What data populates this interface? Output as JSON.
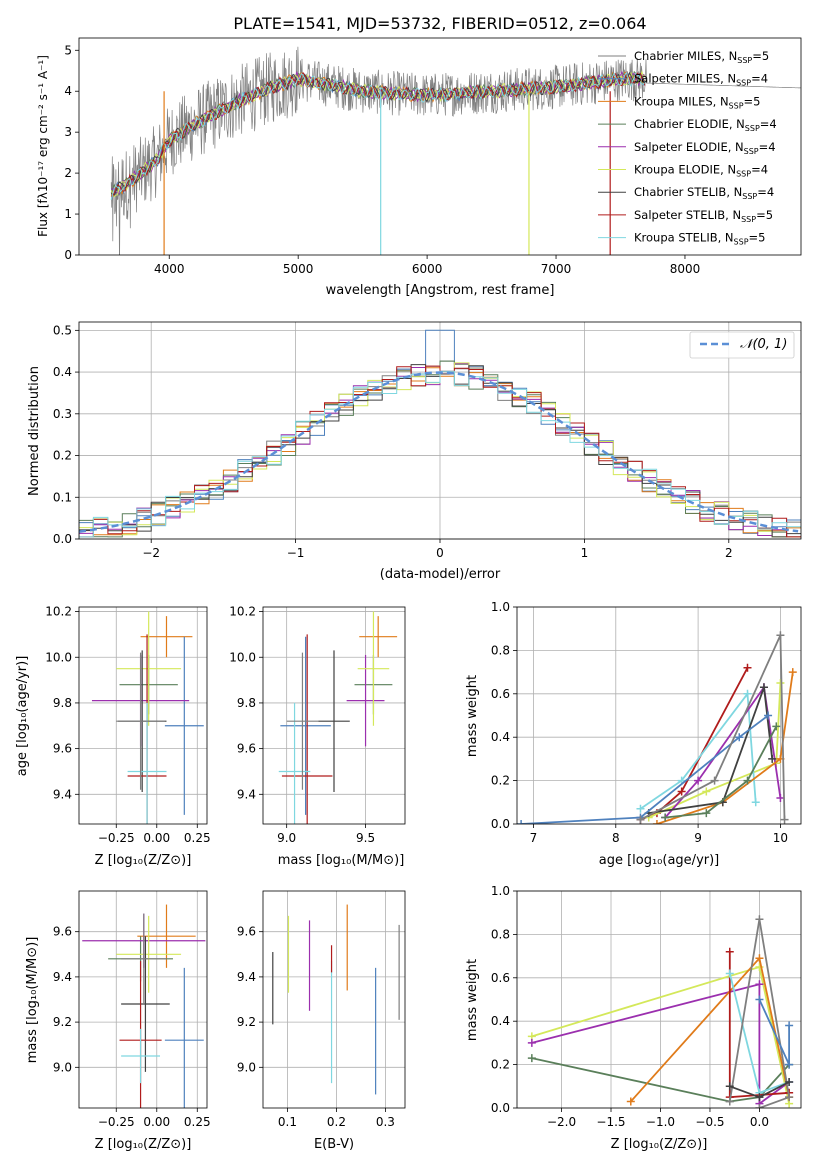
{
  "figure_title": "PLATE=1541, MJD=53732, FIBERID=0512, z=0.064",
  "colors": {
    "chabrier_miles": "#7f7f7f",
    "salpeter_miles": "#4f81bd",
    "kroupa_miles": "#e07b1a",
    "chabrier_elodie": "#5a7f5a",
    "salpeter_elodie": "#9b2fae",
    "kroupa_elodie": "#d4e85a",
    "chabrier_stelib": "#404040",
    "salpeter_stelib": "#b01c1c",
    "kroupa_stelib": "#7fd7e0",
    "normal_curve": "#5b8fd6"
  },
  "chart_data": [
    {
      "id": "spectrum",
      "type": "line",
      "title": "PLATE=1541, MJD=53732, FIBERID=0512, z=0.064",
      "xlabel": "wavelength [Angstrom, rest frame]",
      "ylabel": "Flux [fλ10⁻¹⁷ erg cm⁻² s⁻¹ A⁻¹]",
      "xlim": [
        3300,
        8900
      ],
      "ylim": [
        0,
        5.3
      ],
      "xticks": [
        4000,
        5000,
        6000,
        7000,
        8000
      ],
      "yticks": [
        0,
        1,
        2,
        3,
        4,
        5
      ],
      "grid": false,
      "legend_position": "right",
      "series": [
        {
          "name": "Chabrier MILES, N_SSP=5",
          "key": "chabrier_miles"
        },
        {
          "name": "Salpeter MILES, N_SSP=4",
          "key": "salpeter_miles"
        },
        {
          "name": "Kroupa MILES, N_SSP=5",
          "key": "kroupa_miles"
        },
        {
          "name": "Chabrier ELODIE, N_SSP=4",
          "key": "chabrier_elodie"
        },
        {
          "name": "Salpeter ELODIE, N_SSP=4",
          "key": "salpeter_elodie"
        },
        {
          "name": "Kroupa ELODIE, N_SSP=4",
          "key": "kroupa_elodie"
        },
        {
          "name": "Chabrier STELIB, N_SSP=4",
          "key": "chabrier_stelib"
        },
        {
          "name": "Salpeter STELIB, N_SSP=5",
          "key": "salpeter_stelib"
        },
        {
          "name": "Kroupa STELIB, N_SSP=5",
          "key": "kroupa_stelib"
        }
      ],
      "continuum": {
        "x": [
          3550,
          3700,
          3900,
          4000,
          4200,
          4500,
          4800,
          5000,
          5500,
          6000,
          6500,
          7000,
          7500,
          7700
        ],
        "y": [
          1.5,
          1.8,
          2.3,
          2.8,
          3.2,
          3.7,
          4.1,
          4.3,
          4.0,
          3.9,
          4.0,
          4.1,
          4.3,
          4.3
        ]
      },
      "data_noise_range": [
        3550,
        8900
      ],
      "model_range": [
        3550,
        7700
      ]
    },
    {
      "id": "residuals",
      "type": "histogram",
      "xlabel": "(data-model)/error",
      "ylabel": "Normed distribution",
      "xlim": [
        -2.5,
        2.5
      ],
      "ylim": [
        0,
        0.52
      ],
      "xticks": [
        -2,
        -1,
        0,
        1,
        2
      ],
      "yticks": [
        0,
        0.1,
        0.2,
        0.3,
        0.4,
        0.5
      ],
      "grid": true,
      "legend_position": "top-right",
      "legend_label": "𝒩(0, 1)",
      "bin_width": 0.1
    },
    {
      "id": "age_vs_Z",
      "type": "scatter",
      "xlabel": "Z [log₁₀(Z/Z⊙)]",
      "ylabel": "age  [log₁₀(age/yr)]",
      "xlim": [
        -0.48,
        0.31
      ],
      "ylim": [
        9.27,
        10.22
      ],
      "xticks": [
        -0.25,
        0.0,
        0.25
      ],
      "yticks": [
        9.4,
        9.6,
        9.8,
        10.0,
        10.2
      ],
      "grid": true,
      "points": [
        {
          "key": "kroupa_miles",
          "x": 0.06,
          "xerr": 0.16,
          "y": 10.09,
          "yerr": 0.09
        },
        {
          "key": "salpeter_miles",
          "x": 0.17,
          "xerr": 0.12,
          "y": 9.7,
          "yerr": 0.39
        },
        {
          "key": "chabrier_elodie",
          "x": -0.05,
          "xerr": 0.18,
          "y": 9.88,
          "yerr": 0.13
        },
        {
          "key": "salpeter_elodie",
          "x": -0.1,
          "xerr": 0.3,
          "y": 9.81,
          "yerr": 0.2
        },
        {
          "key": "kroupa_elodie",
          "x": -0.05,
          "xerr": 0.2,
          "y": 9.95,
          "yerr": 0.25
        },
        {
          "key": "chabrier_stelib",
          "x": -0.09,
          "xerr": 0.15,
          "y": 9.72,
          "yerr": 0.31
        },
        {
          "key": "salpeter_stelib",
          "x": -0.06,
          "xerr": 0.12,
          "y": 9.48,
          "yerr": 0.62
        },
        {
          "key": "kroupa_stelib",
          "x": -0.06,
          "xerr": 0.12,
          "y": 9.5,
          "yerr": 0.3
        },
        {
          "key": "chabrier_miles",
          "x": -0.1,
          "xerr": 0.15,
          "y": 9.72,
          "yerr": 0.3
        }
      ]
    },
    {
      "id": "age_vs_mass",
      "type": "scatter",
      "xlabel": "mass [log₁₀(M/M⊙)]",
      "ylabel": "",
      "xlim": [
        8.85,
        9.75
      ],
      "ylim": [
        9.27,
        10.22
      ],
      "xticks": [
        9.0,
        9.5
      ],
      "yticks": [
        9.4,
        9.6,
        9.8,
        10.0,
        10.2
      ],
      "grid": true,
      "points": [
        {
          "key": "kroupa_miles",
          "x": 9.58,
          "xerr": 0.12,
          "y": 10.09,
          "yerr": 0.09
        },
        {
          "key": "salpeter_miles",
          "x": 9.12,
          "xerr": 0.16,
          "y": 9.7,
          "yerr": 0.39
        },
        {
          "key": "chabrier_elodie",
          "x": 9.55,
          "xerr": 0.12,
          "y": 9.88,
          "yerr": 0.13
        },
        {
          "key": "salpeter_elodie",
          "x": 9.5,
          "xerr": 0.12,
          "y": 9.81,
          "yerr": 0.2
        },
        {
          "key": "kroupa_elodie",
          "x": 9.55,
          "xerr": 0.1,
          "y": 9.95,
          "yerr": 0.25
        },
        {
          "key": "chabrier_stelib",
          "x": 9.3,
          "xerr": 0.1,
          "y": 9.72,
          "yerr": 0.31
        },
        {
          "key": "salpeter_stelib",
          "x": 9.13,
          "xerr": 0.16,
          "y": 9.48,
          "yerr": 0.62
        },
        {
          "key": "kroupa_stelib",
          "x": 9.05,
          "xerr": 0.1,
          "y": 9.5,
          "yerr": 0.3
        },
        {
          "key": "chabrier_miles",
          "x": 9.1,
          "xerr": 0.1,
          "y": 9.72,
          "yerr": 0.3
        }
      ]
    },
    {
      "id": "mass_weight_vs_age",
      "type": "line",
      "xlabel": "age  [log₁₀(age/yr)]",
      "ylabel": "mass weight",
      "xlim": [
        6.8,
        10.25
      ],
      "ylim": [
        0,
        1.0
      ],
      "xticks": [
        7,
        8,
        9,
        10
      ],
      "yticks": [
        0.0,
        0.2,
        0.4,
        0.6,
        0.8,
        1.0
      ],
      "grid": true,
      "series": [
        {
          "key": "salpeter_stelib",
          "x": [
            8.3,
            8.5,
            8.8,
            9.6
          ],
          "y": [
            0.02,
            0.05,
            0.15,
            0.72
          ]
        },
        {
          "key": "kroupa_elodie",
          "x": [
            8.4,
            9.1,
            9.95,
            10.0
          ],
          "y": [
            0.03,
            0.15,
            0.28,
            0.65
          ]
        },
        {
          "key": "kroupa_stelib",
          "x": [
            8.3,
            8.8,
            9.6,
            9.7
          ],
          "y": [
            0.07,
            0.2,
            0.6,
            0.1
          ]
        },
        {
          "key": "salpeter_elodie",
          "x": [
            8.6,
            9.0,
            9.8,
            10.0
          ],
          "y": [
            0.03,
            0.2,
            0.63,
            0.12
          ]
        },
        {
          "key": "kroupa_miles",
          "x": [
            8.5,
            9.3,
            10.0,
            10.15
          ],
          "y": [
            0.0,
            0.1,
            0.3,
            0.7
          ]
        },
        {
          "key": "chabrier_stelib",
          "x": [
            8.4,
            9.3,
            9.8,
            9.9
          ],
          "y": [
            0.05,
            0.1,
            0.63,
            0.3
          ]
        },
        {
          "key": "salpeter_miles",
          "x": [
            6.85,
            8.3,
            9.5,
            9.85
          ],
          "y": [
            0.0,
            0.03,
            0.4,
            0.5
          ]
        },
        {
          "key": "chabrier_elodie",
          "x": [
            8.6,
            9.1,
            9.6,
            9.95
          ],
          "y": [
            0.03,
            0.05,
            0.2,
            0.45
          ]
        },
        {
          "key": "chabrier_miles",
          "x": [
            8.3,
            9.2,
            10.0,
            10.05
          ],
          "y": [
            0.02,
            0.2,
            0.87,
            0.02
          ]
        }
      ]
    },
    {
      "id": "mass_vs_Z",
      "type": "scatter",
      "xlabel": "Z [log₁₀(Z/Z⊙)]",
      "ylabel": "mass [log₁₀(M/M⊙)]",
      "xlim": [
        -0.48,
        0.31
      ],
      "ylim": [
        8.82,
        9.78
      ],
      "xticks": [
        -0.25,
        0.0,
        0.25
      ],
      "yticks": [
        9.0,
        9.2,
        9.4,
        9.6
      ],
      "grid": true,
      "points": [
        {
          "key": "kroupa_miles",
          "x": 0.06,
          "xerr": 0.18,
          "y": 9.58,
          "yerr": 0.14
        },
        {
          "key": "salpeter_miles",
          "x": 0.17,
          "xerr": 0.12,
          "y": 9.12,
          "yerr": 0.32
        },
        {
          "key": "chabrier_elodie",
          "x": -0.1,
          "xerr": 0.2,
          "y": 9.48,
          "yerr": 0.1
        },
        {
          "key": "salpeter_elodie",
          "x": -0.08,
          "xerr": 0.38,
          "y": 9.56,
          "yerr": 0.12
        },
        {
          "key": "kroupa_elodie",
          "x": -0.05,
          "xerr": 0.2,
          "y": 9.5,
          "yerr": 0.17
        },
        {
          "key": "chabrier_stelib",
          "x": -0.07,
          "xerr": 0.15,
          "y": 9.28,
          "yerr": 0.3
        },
        {
          "key": "salpeter_stelib",
          "x": -0.1,
          "xerr": 0.13,
          "y": 9.12,
          "yerr": 0.35
        },
        {
          "key": "kroupa_stelib",
          "x": -0.1,
          "xerr": 0.12,
          "y": 9.05,
          "yerr": 0.12
        },
        {
          "key": "chabrier_miles",
          "x": -0.08,
          "xerr": 0.14,
          "y": 9.48,
          "yerr": 0.2
        }
      ]
    },
    {
      "id": "mass_vs_ebv",
      "type": "scatter",
      "xlabel": "E(B-V)",
      "ylabel": "",
      "xlim": [
        0.05,
        0.34
      ],
      "ylim": [
        8.82,
        9.78
      ],
      "xticks": [
        0.1,
        0.2,
        0.3
      ],
      "yticks": [
        9.0,
        9.2,
        9.4,
        9.6
      ],
      "grid": true,
      "points": [
        {
          "key": "chabrier_stelib",
          "x": 0.07,
          "y": 9.35,
          "yerr": 0.16
        },
        {
          "key": "kroupa_elodie",
          "x": 0.102,
          "y": 9.5,
          "yerr": 0.17
        },
        {
          "key": "salpeter_elodie",
          "x": 0.145,
          "y": 9.45,
          "yerr": 0.2
        },
        {
          "key": "kroupa_stelib",
          "x": 0.19,
          "y": 9.2,
          "yerr": 0.27
        },
        {
          "key": "salpeter_stelib",
          "x": 0.19,
          "y": 9.48,
          "yerr": 0.06
        },
        {
          "key": "kroupa_miles",
          "x": 0.222,
          "y": 9.53,
          "yerr": 0.19
        },
        {
          "key": "salpeter_miles",
          "x": 0.28,
          "y": 9.16,
          "yerr": 0.28
        },
        {
          "key": "chabrier_miles",
          "x": 0.328,
          "y": 9.42,
          "yerr": 0.21
        }
      ]
    },
    {
      "id": "mass_weight_vs_Z",
      "type": "line",
      "xlabel": "Z [log₁₀(Z/Z⊙)]",
      "ylabel": "mass weight",
      "xlim": [
        -2.45,
        0.42
      ],
      "ylim": [
        0,
        1.0
      ],
      "xticks": [
        -2.0,
        -1.5,
        -1.0,
        -0.5,
        0.0
      ],
      "yticks": [
        0.0,
        0.2,
        0.4,
        0.6,
        0.8,
        1.0
      ],
      "grid": true,
      "series": [
        {
          "key": "chabrier_elodie",
          "x": [
            -2.3,
            -0.3,
            0.0,
            0.3
          ],
          "y": [
            0.23,
            0.03,
            0.05,
            0.2
          ]
        },
        {
          "key": "kroupa_elodie",
          "x": [
            -2.3,
            0.0,
            0.3
          ],
          "y": [
            0.33,
            0.65,
            0.02
          ]
        },
        {
          "key": "salpeter_elodie",
          "x": [
            -2.3,
            0.0,
            0.0,
            0.3
          ],
          "y": [
            0.3,
            0.57,
            0.02,
            0.12
          ]
        },
        {
          "key": "kroupa_miles",
          "x": [
            -1.3,
            0.0,
            0.3
          ],
          "y": [
            0.03,
            0.69,
            0.05
          ]
        },
        {
          "key": "salpeter_stelib",
          "x": [
            -0.3,
            -0.3,
            0.3
          ],
          "y": [
            0.72,
            0.05,
            0.07
          ]
        },
        {
          "key": "kroupa_stelib",
          "x": [
            -0.3,
            0.0,
            0.3
          ],
          "y": [
            0.62,
            0.07,
            0.12
          ]
        },
        {
          "key": "chabrier_miles",
          "x": [
            -0.3,
            0.0,
            0.3,
            0.0
          ],
          "y": [
            0.03,
            0.87,
            0.05,
            0.0
          ]
        },
        {
          "key": "salpeter_miles",
          "x": [
            0.0,
            0.3,
            0.3
          ],
          "y": [
            0.5,
            0.2,
            0.38
          ]
        },
        {
          "key": "chabrier_stelib",
          "x": [
            -0.3,
            0.0,
            0.3
          ],
          "y": [
            0.1,
            0.05,
            0.12
          ]
        }
      ]
    }
  ]
}
